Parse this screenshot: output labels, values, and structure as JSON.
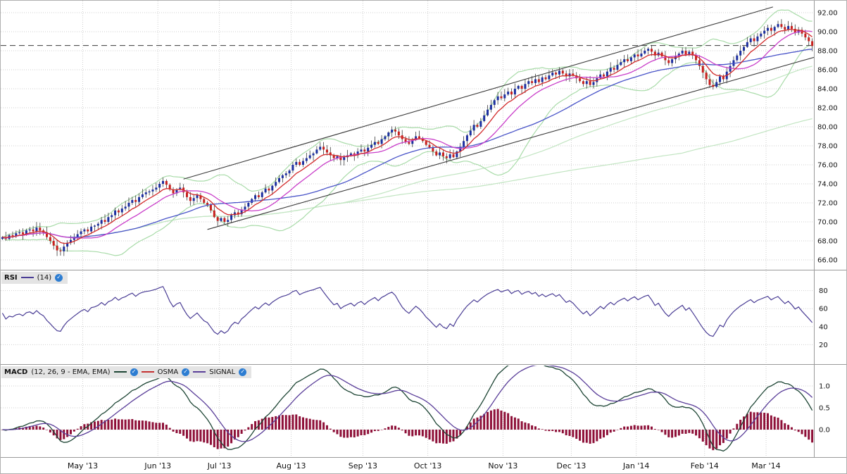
{
  "chart_data": {
    "type": "candlestick-with-indicators",
    "x": {
      "months": [
        {
          "label": "May '13",
          "i": 24
        },
        {
          "label": "Jun '13",
          "i": 46
        },
        {
          "label": "Jul '13",
          "i": 64
        },
        {
          "label": "Aug '13",
          "i": 85
        },
        {
          "label": "Sep '13",
          "i": 106
        },
        {
          "label": "Oct '13",
          "i": 125
        },
        {
          "label": "Nov '13",
          "i": 147
        },
        {
          "label": "Dec '13",
          "i": 167
        },
        {
          "label": "Jan '14",
          "i": 186
        },
        {
          "label": "Feb '14",
          "i": 206
        },
        {
          "label": "Mar '14",
          "i": 224
        }
      ]
    },
    "price": {
      "yticks": [
        92,
        90,
        88,
        86,
        84,
        82,
        80,
        78,
        76,
        74,
        72,
        70,
        68,
        66
      ],
      "ylim": [
        65.4,
        92.9
      ],
      "dashed_level": 88.55,
      "trendlines": [
        {
          "i1": 60,
          "p1": 69.2,
          "i2": 238,
          "p2": 87.3
        },
        {
          "i1": 53,
          "p1": 74.5,
          "i2": 226,
          "p2": 92.6
        }
      ],
      "overlays": {
        "ema_fast": 8,
        "sma_mid": 16,
        "sma_slow": 40,
        "sma_long": 100,
        "sma_longest": 200,
        "boll_n": 20,
        "boll_k": 2
      },
      "closes": [
        68.4,
        68.2,
        68.6,
        68.5,
        68.8,
        68.9,
        68.7,
        69.1,
        69.2,
        69.0,
        69.4,
        69.1,
        68.9,
        68.4,
        68.0,
        67.5,
        67.0,
        66.9,
        67.4,
        67.8,
        68.1,
        68.4,
        68.7,
        69.0,
        69.2,
        69.0,
        69.5,
        69.6,
        69.8,
        70.2,
        70.0,
        70.5,
        70.7,
        71.2,
        71.0,
        71.4,
        71.6,
        72.0,
        72.3,
        72.1,
        72.6,
        72.9,
        73.1,
        73.2,
        73.4,
        73.6,
        74.0,
        74.3,
        73.9,
        73.4,
        73.0,
        73.4,
        73.6,
        73.1,
        72.6,
        72.2,
        72.5,
        72.8,
        72.4,
        72.0,
        71.8,
        71.2,
        70.5,
        70.1,
        70.4,
        70.0,
        70.2,
        70.7,
        71.0,
        70.8,
        71.3,
        71.6,
        72.0,
        72.4,
        72.8,
        72.6,
        73.1,
        73.5,
        73.3,
        73.8,
        74.2,
        74.6,
        74.9,
        75.1,
        75.4,
        76.0,
        76.3,
        76.0,
        76.4,
        76.7,
        77.0,
        77.2,
        77.6,
        77.9,
        77.6,
        77.3,
        77.0,
        76.7,
        76.9,
        76.5,
        76.8,
        77.0,
        77.2,
        77.0,
        77.4,
        77.6,
        77.4,
        77.8,
        78.1,
        78.4,
        78.2,
        78.7,
        79.0,
        79.4,
        79.7,
        79.5,
        79.1,
        78.7,
        78.4,
        78.2,
        78.6,
        79.0,
        78.8,
        78.5,
        78.1,
        77.8,
        77.4,
        77.0,
        77.3,
        76.9,
        76.7,
        77.1,
        76.8,
        77.4,
        77.9,
        78.5,
        79.1,
        79.6,
        80.2,
        80.0,
        80.6,
        81.2,
        81.8,
        82.3,
        82.8,
        83.2,
        83.0,
        83.4,
        83.7,
        83.4,
        84.0,
        84.3,
        84.0,
        84.5,
        84.8,
        84.6,
        85.0,
        84.7,
        85.2,
        85.0,
        85.4,
        85.7,
        85.5,
        85.9,
        85.6,
        85.3,
        85.6,
        85.4,
        85.1,
        84.8,
        84.5,
        84.8,
        84.4,
        84.7,
        85.1,
        85.5,
        85.3,
        85.8,
        86.2,
        86.0,
        86.5,
        86.8,
        87.1,
        86.9,
        87.3,
        87.6,
        87.4,
        87.7,
        88.0,
        88.2,
        87.9,
        87.5,
        87.8,
        87.4,
        87.0,
        86.7,
        87.1,
        87.4,
        87.7,
        88.0,
        87.6,
        87.9,
        87.5,
        87.0,
        86.4,
        85.7,
        85.0,
        84.4,
        84.2,
        84.7,
        85.3,
        85.0,
        85.8,
        86.4,
        87.0,
        87.5,
        88.0,
        88.4,
        88.9,
        89.3,
        89.0,
        89.5,
        89.8,
        90.1,
        90.4,
        90.1,
        90.5,
        90.8,
        90.5,
        90.2,
        90.6,
        90.3,
        89.9,
        90.2,
        89.8,
        89.4,
        89.0,
        88.5
      ]
    },
    "rsi": {
      "label": "RSI",
      "params": "(14)",
      "period": 14,
      "yticks": [
        80,
        60,
        40,
        20
      ]
    },
    "macd": {
      "label": "MACD",
      "params": "(12, 26, 9 - EMA, EMA)",
      "fast": 12,
      "slow": 26,
      "signal_period": 9,
      "yticks": [
        1.0,
        0.5,
        0.0
      ],
      "series_labels": {
        "osma": "OSMA",
        "signal": "SIGNAL"
      }
    }
  },
  "colors": {
    "up": "#1c2fa0",
    "down": "#c8201e",
    "wick": "#3a3a3a",
    "ma_fast": "#d22a2a",
    "ma_mid": "#c93ec9",
    "ma_slow": "#4853c8",
    "band": "#a8dba8",
    "long_ma": "#c2e5c2",
    "trend": "#3a3a3a",
    "dashed": "#3a3a3a",
    "rsi": "#4a3d95",
    "macd": "#1d4534",
    "signal": "#5a3e99",
    "osma": "#c43131",
    "hist": "#8e1038",
    "grid": "#cfcfcf",
    "axis": "#9a9a9a",
    "text": "#111111",
    "legend_bg": "#e4e4e4",
    "check": "#2d7dd2"
  },
  "icons": {
    "check_glyph": "✓"
  }
}
